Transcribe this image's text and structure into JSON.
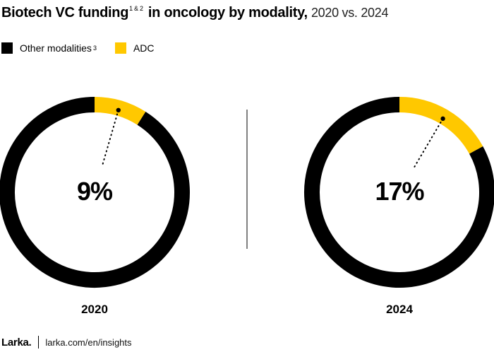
{
  "header": {
    "title_bold": "Biotech VC funding",
    "title_sup": "1 & 2",
    "title_bold2": "in oncology by modality,",
    "title_light": "2020 vs. 2024"
  },
  "legend": {
    "other_label": "Other modalities",
    "other_sup": "3",
    "adc_label": "ADC"
  },
  "colors": {
    "other": "#000000",
    "adc": "#FFC800"
  },
  "chart_data": [
    {
      "type": "pie",
      "donut": true,
      "year": "2020",
      "slices": [
        {
          "name": "ADC",
          "value": 9
        },
        {
          "name": "Other modalities",
          "value": 91
        }
      ],
      "label": "9%"
    },
    {
      "type": "pie",
      "donut": true,
      "year": "2024",
      "slices": [
        {
          "name": "ADC",
          "value": 17
        },
        {
          "name": "Other modalities",
          "value": 83
        }
      ],
      "label": "17%"
    }
  ],
  "footer": {
    "logo": "Larka.",
    "url": "larka.com/en/insights"
  }
}
